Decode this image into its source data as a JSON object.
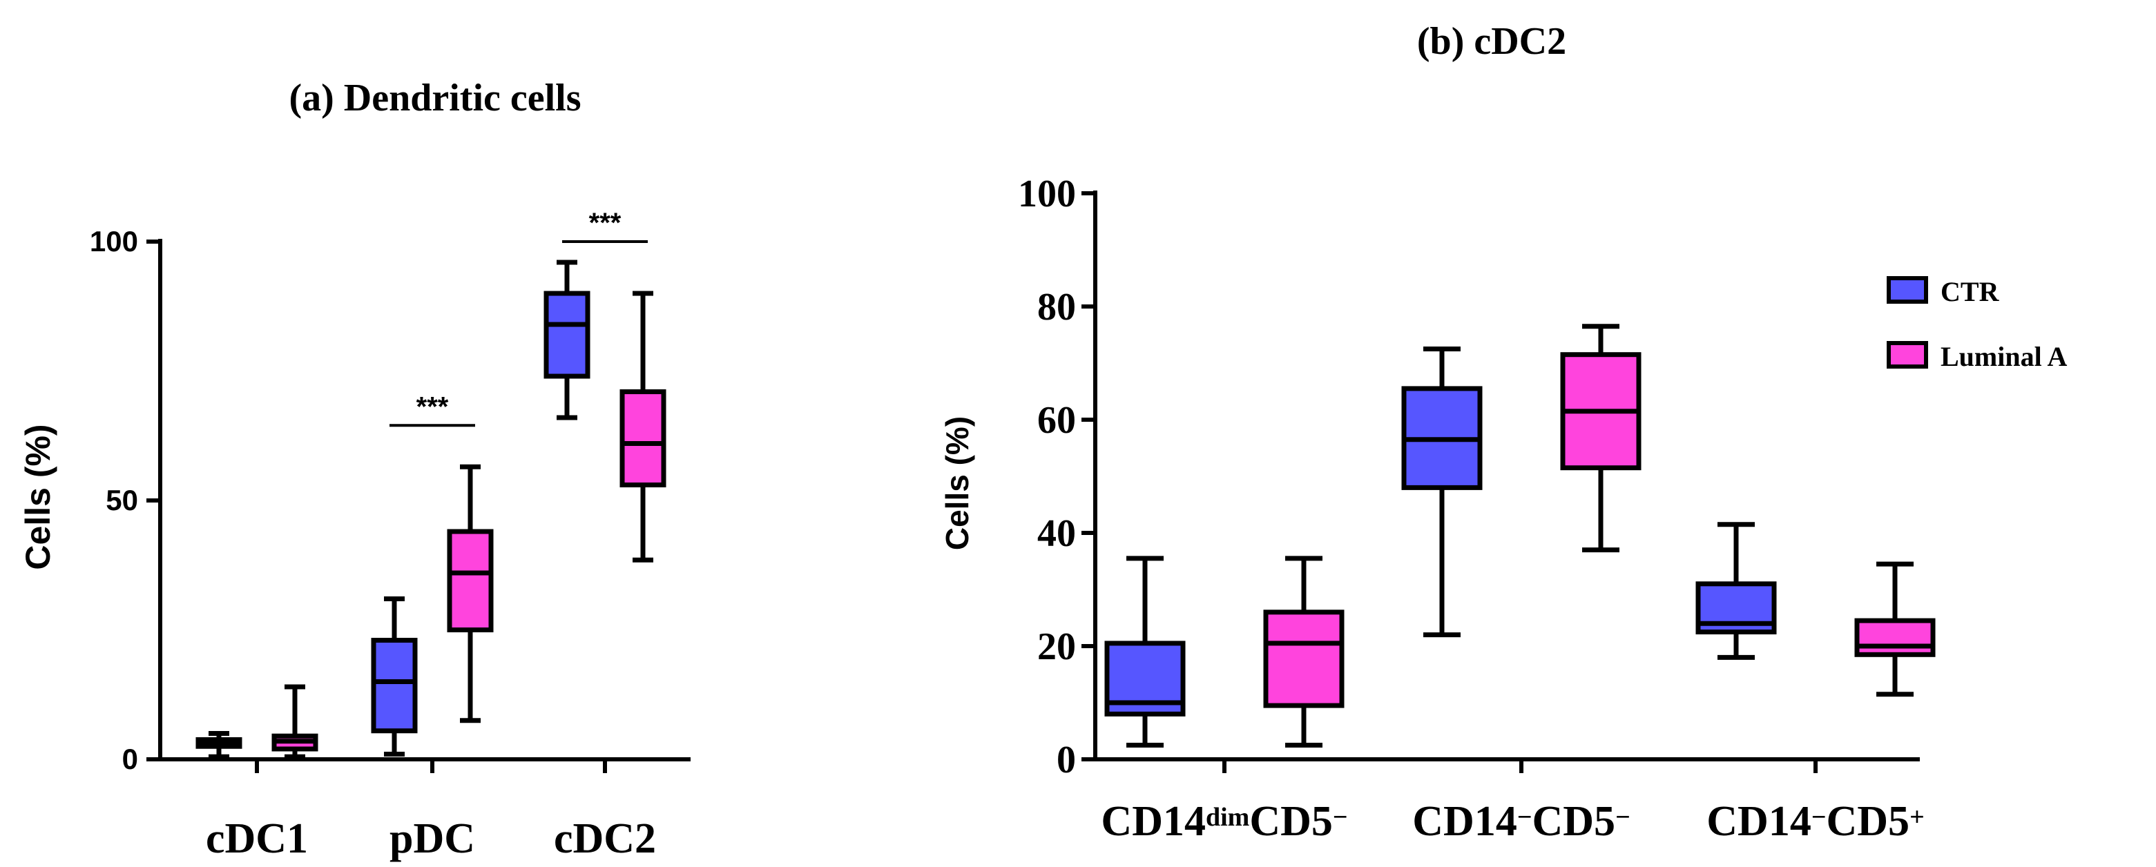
{
  "colors": {
    "ctr": "#5656ff",
    "luminal": "#ff44dd",
    "stroke": "#000000"
  },
  "chart_data": [
    {
      "type": "box",
      "title": "(a) Dendritic cells",
      "ylabel": "Cells (%)",
      "ylim": [
        0,
        100
      ],
      "yticks": [
        "0",
        "50",
        "100"
      ],
      "categories": [
        "cDC1",
        "pDC",
        "cDC2"
      ],
      "series": [
        {
          "name": "CTR",
          "boxes": [
            {
              "min": 0.5,
              "q1": 2.5,
              "median": 3.2,
              "q3": 3.8,
              "max": 5
            },
            {
              "min": 1,
              "q1": 5.5,
              "median": 15,
              "q3": 23,
              "max": 31
            },
            {
              "min": 66,
              "q1": 74,
              "median": 84,
              "q3": 90,
              "max": 96
            }
          ]
        },
        {
          "name": "Luminal A",
          "boxes": [
            {
              "min": 0.5,
              "q1": 2,
              "median": 3.5,
              "q3": 4.5,
              "max": 14
            },
            {
              "min": 7.5,
              "q1": 25,
              "median": 36,
              "q3": 44,
              "max": 56.5
            },
            {
              "min": 38.5,
              "q1": 53,
              "median": 61,
              "q3": 71,
              "max": 90
            }
          ]
        }
      ],
      "annotations": [
        {
          "category": "pDC",
          "label": "***",
          "y": 64.5
        },
        {
          "category": "cDC2",
          "label": "***",
          "y": 100
        }
      ]
    },
    {
      "type": "box",
      "title": "(b) cDC2",
      "ylabel": "Cells (%)",
      "ylim": [
        0,
        100
      ],
      "yticks": [
        "0",
        "20",
        "40",
        "60",
        "80",
        "100"
      ],
      "categories": [
        {
          "main1": "CD14",
          "sup1": "dim",
          "main2": "CD5",
          "sup2": "−"
        },
        {
          "main1": "CD14",
          "sup1": "−",
          "main2": "CD5",
          "sup2": "−"
        },
        {
          "main1": "CD14",
          "sup1": "−",
          "main2": "CD5",
          "sup2": "+"
        }
      ],
      "legend": [
        "CTR",
        "Luminal A"
      ],
      "legend_position": "top-right",
      "series": [
        {
          "name": "CTR",
          "boxes": [
            {
              "min": 2.5,
              "q1": 8,
              "median": 10,
              "q3": 20.5,
              "max": 35.5
            },
            {
              "min": 22,
              "q1": 48,
              "median": 56.5,
              "q3": 65.5,
              "max": 72.5
            },
            {
              "min": 18,
              "q1": 22.5,
              "median": 24,
              "q3": 31,
              "max": 41.5
            }
          ]
        },
        {
          "name": "Luminal A",
          "boxes": [
            {
              "min": 2.5,
              "q1": 9.5,
              "median": 20.5,
              "q3": 26,
              "max": 35.5
            },
            {
              "min": 37,
              "q1": 51.5,
              "median": 61.5,
              "q3": 71.5,
              "max": 76.5
            },
            {
              "min": 11.5,
              "q1": 18.5,
              "median": 20,
              "q3": 24.5,
              "max": 34.5
            }
          ]
        }
      ]
    }
  ]
}
